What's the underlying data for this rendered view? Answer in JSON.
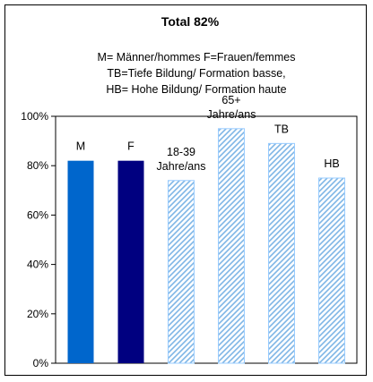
{
  "chart_data": {
    "type": "bar",
    "title": "Total 82%",
    "subtitle_lines": [
      "M= Männer/hommes F=Frauen/femmes",
      "TB=Tiefe Bildung/ Formation basse,",
      "HB= Hohe Bildung/ Formation haute"
    ],
    "categories": [
      {
        "label": [
          "M"
        ]
      },
      {
        "label": [
          "F"
        ]
      },
      {
        "label": [
          "18-39",
          "Jahre/ans"
        ]
      },
      {
        "label": [
          "65+",
          "Jahre/ans"
        ]
      },
      {
        "label": [
          "TB"
        ]
      },
      {
        "label": [
          "HB"
        ]
      }
    ],
    "values": [
      82,
      82,
      74,
      95,
      89,
      75
    ],
    "bar_styles": [
      "solid",
      "solid",
      "hatched",
      "hatched",
      "hatched",
      "hatched"
    ],
    "bar_colors": [
      "#0066CC",
      "#000080",
      "#99CCFF",
      "#99CCFF",
      "#99CCFF",
      "#99CCFF"
    ],
    "ylim": [
      0,
      100
    ],
    "y_ticks": [
      0,
      20,
      40,
      60,
      80,
      100
    ],
    "y_tick_labels": [
      "0%",
      "20%",
      "40%",
      "60%",
      "80%",
      "100%"
    ],
    "grid": false,
    "legend": "none",
    "xlabel": "",
    "ylabel": ""
  }
}
